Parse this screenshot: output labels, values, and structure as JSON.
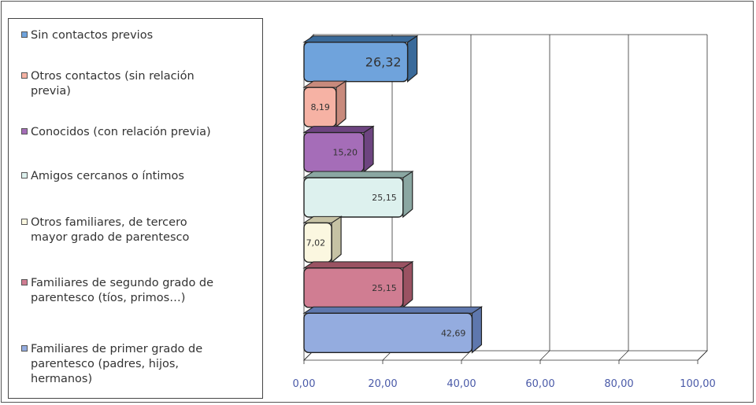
{
  "chart_data": {
    "type": "bar",
    "orientation": "horizontal",
    "categories": [
      "Sin contactos previos",
      "Otros contactos (sin relación previa)",
      "Conocidos (con relación previa)",
      "Amigos cercanos o íntimos",
      "Otros familiares, de tercero mayor grado de parentesco",
      "Familiares de segundo grado de parentesco (tíos, primos…)",
      "Familiares de primer grado de parentesco (padres, hijos, hermanos)"
    ],
    "values": [
      26.32,
      8.19,
      15.2,
      25.15,
      7.02,
      25.15,
      42.69
    ],
    "data_labels": [
      "26,32",
      "8,19",
      "15,20",
      "25,15",
      "7,02",
      "25,15",
      "42,69"
    ],
    "colors": [
      "#6fa3dc",
      "#f6b2a4",
      "#a56db8",
      "#ddf1ee",
      "#fbf7e0",
      "#d07d92",
      "#94acdf"
    ],
    "side_colors": [
      "#3a6a9a",
      "#c88a7c",
      "#6d4480",
      "#8aa7a2",
      "#c6c2a4",
      "#9a5262",
      "#5e77ad"
    ],
    "xlim": [
      0,
      100
    ],
    "x_ticks": [
      "0,00",
      "20,00",
      "40,00",
      "60,00",
      "80,00",
      "100,00"
    ],
    "x_tick_values": [
      0,
      20,
      40,
      60,
      80,
      100
    ],
    "grid": "vertical",
    "legend_position": "left"
  },
  "legend": [
    {
      "lines": [
        "Sin contactos previos"
      ]
    },
    {
      "lines": [
        "Otros contactos (sin relación",
        "previa)"
      ]
    },
    {
      "lines": [
        "Conocidos (con relación previa)"
      ]
    },
    {
      "lines": [
        "Amigos cercanos o íntimos"
      ]
    },
    {
      "lines": [
        "Otros familiares, de tercero",
        "mayor grado de parentesco"
      ]
    },
    {
      "lines": [
        "Familiares de segundo grado de",
        "parentesco (tíos, primos…)"
      ]
    },
    {
      "lines": [
        "Familiares de primer grado de",
        "parentesco (padres, hijos,",
        "hermanos)"
      ]
    }
  ]
}
